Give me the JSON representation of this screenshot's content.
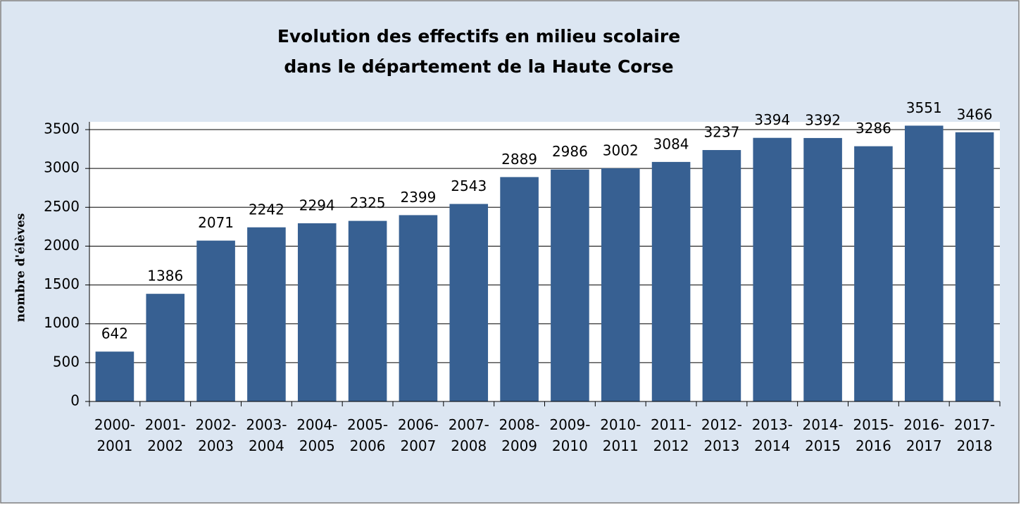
{
  "chart_data": {
    "type": "bar",
    "title": "Evolution des effectifs en milieu scolaire\ndans le département de la Haute Corse",
    "y_label": "nombre d'élèves",
    "categories": [
      "2000-\n2001",
      "2001-\n2002",
      "2002-\n2003",
      "2003-\n2004",
      "2004-\n2005",
      "2005-\n2006",
      "2006-\n2007",
      "2007-\n2008",
      "2008-\n2009",
      "2009-\n2010",
      "2010-\n2011",
      "2011-\n2012",
      "2012-\n2013",
      "2013-\n2014",
      "2014-\n2015",
      "2015-\n2016",
      "2016-\n2017",
      "2017-\n2018"
    ],
    "values": [
      642,
      1386,
      2071,
      2242,
      2294,
      2325,
      2399,
      2543,
      2889,
      2986,
      3002,
      3084,
      3237,
      3394,
      3392,
      3286,
      3551,
      3466
    ],
    "color": "#376092",
    "ylim": [
      0,
      3600
    ],
    "yticks": [
      0,
      500,
      1000,
      1500,
      2000,
      2500,
      3000,
      3500
    ],
    "grid": true
  }
}
